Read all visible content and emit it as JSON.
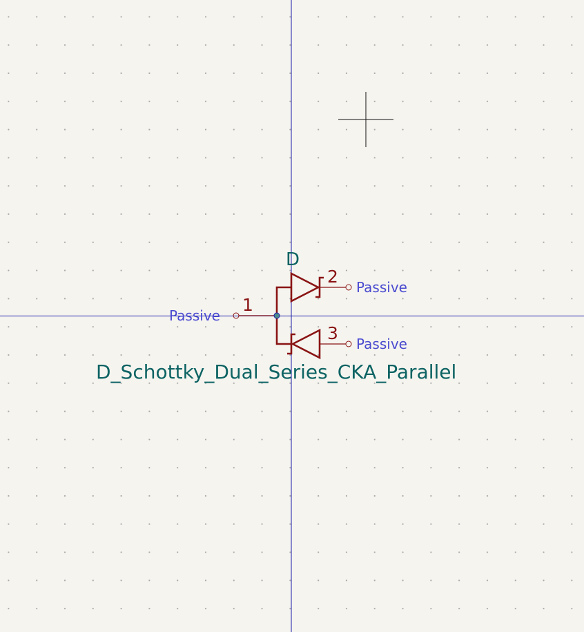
{
  "symbol": {
    "reference": "D",
    "value": "D_Schottky_Dual_Series_CKA_Parallel"
  },
  "pins": [
    {
      "number": "1",
      "type": "Passive"
    },
    {
      "number": "2",
      "type": "Passive"
    },
    {
      "number": "3",
      "type": "Passive"
    }
  ],
  "colors": {
    "background": "#f5f4ef",
    "grid_dot": "#a9a9a9",
    "axis": "#1a1aa8",
    "body": "#8a1414",
    "pin_type_text": "#4a4ad0",
    "field_text": "#0d6363"
  }
}
